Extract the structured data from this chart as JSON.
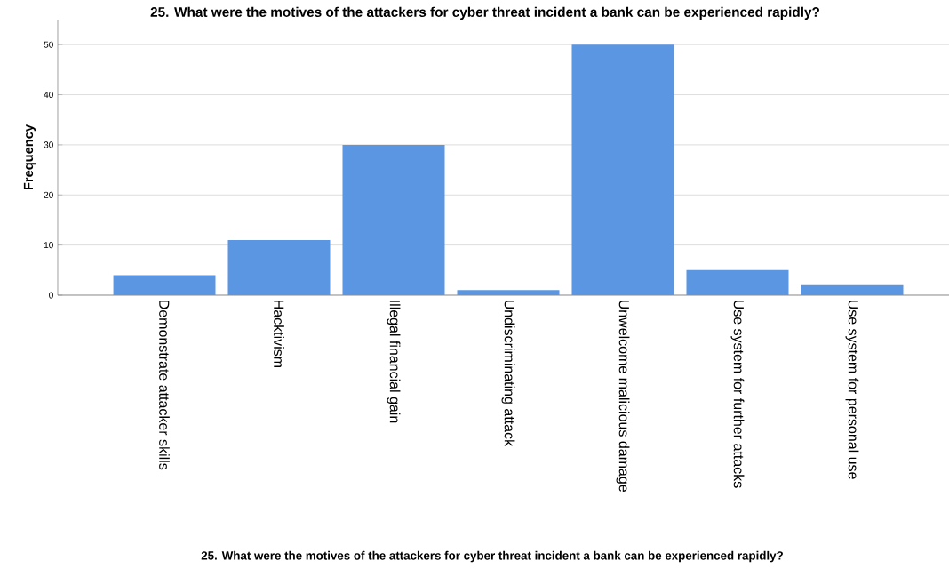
{
  "chart_data": {
    "type": "bar",
    "title": "25. What were the motives of the attackers for cyber threat incident a bank can be experienced rapidly?",
    "annotations": [
      "25. What were the motives of the attackers for cyber threat incident a bank can be experienced rapidly?"
    ],
    "ylabel": "Frequency",
    "categories": [
      "Demonstrate attacker skills",
      "Hacktivism",
      "Illegal financial gain",
      "Undiscriminating attack",
      "Unwelcome malicious damage",
      "Use system for further attacks",
      "Use system for personal use"
    ],
    "values": [
      4,
      11,
      30,
      1,
      50,
      5,
      2
    ],
    "color": "#5b96e3",
    "ylim": [
      0,
      55
    ],
    "yticks": [
      0,
      10,
      20,
      30,
      40,
      50
    ],
    "grid": "y"
  }
}
